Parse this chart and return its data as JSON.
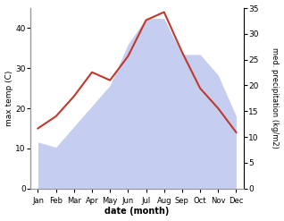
{
  "months": [
    "Jan",
    "Feb",
    "Mar",
    "Apr",
    "May",
    "Jun",
    "Jul",
    "Aug",
    "Sep",
    "Oct",
    "Nov",
    "Dec"
  ],
  "max_temp": [
    15,
    18,
    23,
    29,
    27,
    33,
    42,
    44,
    34,
    25,
    20,
    14
  ],
  "precipitation": [
    9,
    8,
    12,
    16,
    20,
    28,
    33,
    33,
    26,
    26,
    22,
    14
  ],
  "temp_color": "#c0392b",
  "precip_fill_color": "#c5cdf0",
  "ylabel_left": "max temp (C)",
  "ylabel_right": "med. precipitation (kg/m2)",
  "xlabel": "date (month)",
  "ylim_left": [
    0,
    45
  ],
  "ylim_right": [
    0,
    35
  ],
  "yticks_left": [
    0,
    10,
    20,
    30,
    40
  ],
  "yticks_right": [
    0,
    5,
    10,
    15,
    20,
    25,
    30,
    35
  ],
  "bg_color": "#ffffff"
}
